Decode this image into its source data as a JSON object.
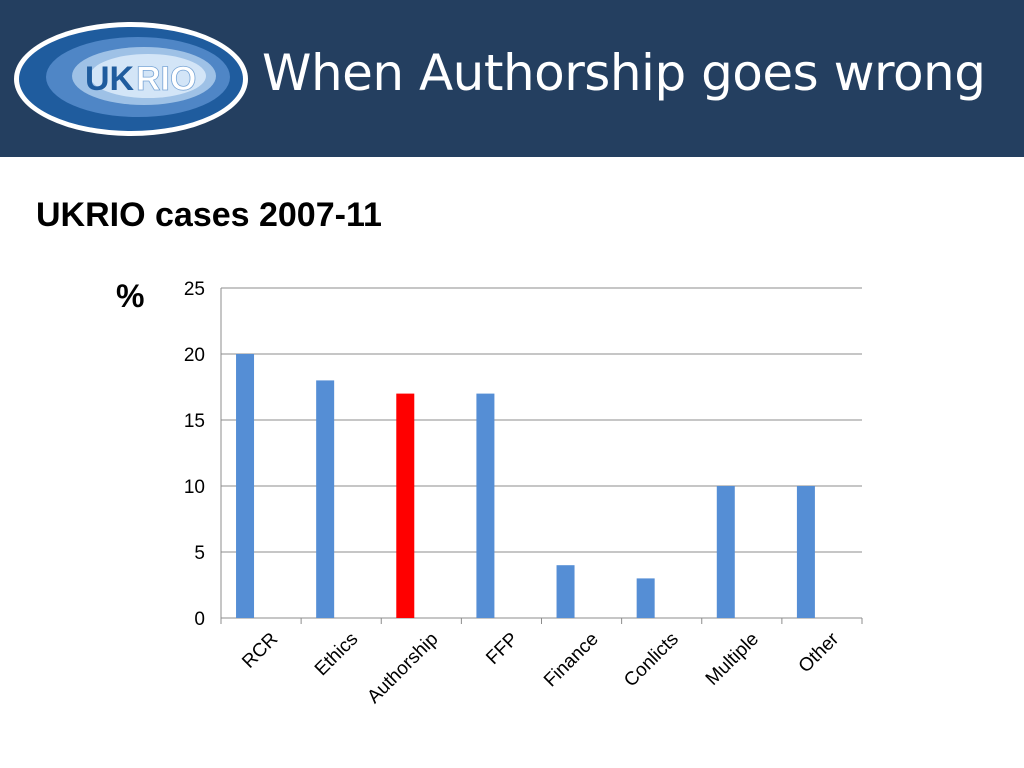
{
  "header": {
    "title": "When Authorship goes wrong",
    "logo": {
      "text_uk": "UK",
      "text_rio": "RIO"
    }
  },
  "slide": {
    "subtitle": "UKRIO  cases 2007-11"
  },
  "colors": {
    "header_bg": "#243f60",
    "bar": "#558ed5",
    "highlight_bar": "#ff0000"
  },
  "chart_data": {
    "type": "bar",
    "categories": [
      "RCR",
      "Ethics",
      "Authorship",
      "FFP",
      "Finance",
      "Conlicts",
      "Multiple",
      "Other"
    ],
    "values": [
      20,
      18,
      17,
      17,
      4,
      3,
      10,
      10
    ],
    "highlight": "Authorship",
    "ylabel": "%",
    "ylim": [
      0,
      25
    ],
    "yticks": [
      0,
      5,
      10,
      15,
      20,
      25
    ],
    "grid": true,
    "legend": "none"
  }
}
